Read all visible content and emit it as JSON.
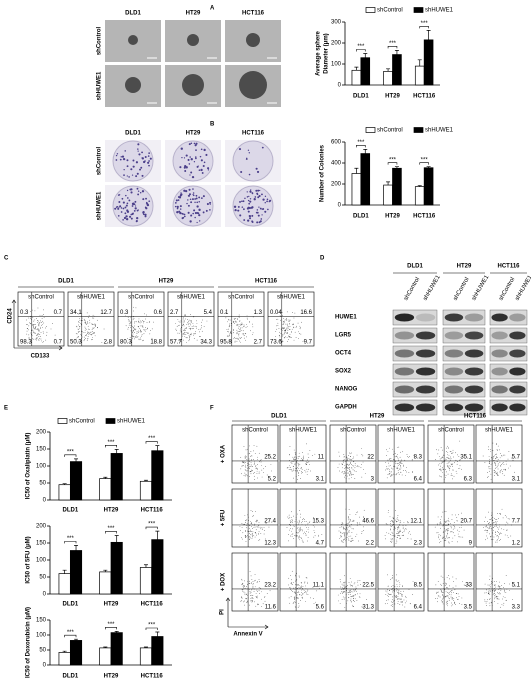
{
  "panel_labels": [
    "A",
    "B",
    "C",
    "D",
    "E",
    "F"
  ],
  "panel_a": {
    "columns": [
      "DLD1",
      "HT29",
      "HCT116"
    ],
    "rows": [
      "shControl",
      "shHUWE1"
    ]
  },
  "panel_b": {
    "columns": [
      "DLD1",
      "HT29",
      "HCT116"
    ],
    "rows": [
      "shControl",
      "shHUWE1"
    ]
  },
  "chart_data": [
    {
      "type": "bar",
      "y_label": [
        "Average sphere",
        "Diameter (μm)"
      ],
      "categories": [
        "DLD1",
        "HT29",
        "HCT116"
      ],
      "series": [
        {
          "name": "shControl",
          "color": "#ffffff",
          "values": [
            70,
            65,
            90
          ],
          "errors": [
            15,
            12,
            30
          ]
        },
        {
          "name": "shHUWE1",
          "color": "#000000",
          "values": [
            130,
            145,
            215
          ],
          "errors": [
            20,
            20,
            45
          ]
        }
      ],
      "significance": [
        "***",
        "***",
        "***"
      ],
      "ylim": [
        0,
        300
      ],
      "yticks": [
        0,
        100,
        200,
        300
      ]
    },
    {
      "type": "bar",
      "y_label": [
        "Number of Colonies"
      ],
      "categories": [
        "DLD1",
        "HT29",
        "HCT116"
      ],
      "series": [
        {
          "name": "shControl",
          "color": "#ffffff",
          "values": [
            300,
            190,
            175
          ],
          "errors": [
            50,
            30,
            10
          ]
        },
        {
          "name": "shHUWE1",
          "color": "#000000",
          "values": [
            490,
            350,
            355
          ],
          "errors": [
            40,
            15,
            10
          ]
        }
      ],
      "significance": [
        "***",
        "***",
        "***"
      ],
      "ylim": [
        0,
        600
      ],
      "yticks": [
        0,
        200,
        400,
        600
      ]
    },
    {
      "type": "bar",
      "y_label": [
        "IC50 of Oxaliplatin (μM)"
      ],
      "categories": [
        "DLD1",
        "HT29",
        "HCT116"
      ],
      "series": [
        {
          "name": "shControl",
          "color": "#ffffff",
          "values": [
            45,
            63,
            55
          ],
          "errors": [
            3,
            4,
            3
          ]
        },
        {
          "name": "shHUWE1",
          "color": "#000000",
          "values": [
            113,
            137,
            145
          ],
          "errors": [
            8,
            12,
            15
          ]
        }
      ],
      "significance": [
        "***",
        "***",
        "***"
      ],
      "ylim": [
        0,
        200
      ],
      "yticks": [
        0,
        50,
        100,
        150,
        200
      ]
    },
    {
      "type": "bar",
      "y_label": [
        "IC50 of 5FU (μM)"
      ],
      "categories": [
        "DLD1",
        "HT29",
        "HCT116"
      ],
      "series": [
        {
          "color": "#ffffff",
          "values": [
            60,
            65,
            78
          ],
          "errors": [
            10,
            5,
            8
          ]
        },
        {
          "color": "#000000",
          "values": [
            128,
            152,
            160
          ],
          "errors": [
            15,
            20,
            25
          ]
        }
      ],
      "significance": [
        "***",
        "***",
        "***"
      ],
      "ylim": [
        0,
        200
      ],
      "yticks": [
        0,
        50,
        100,
        150,
        200
      ]
    },
    {
      "type": "bar",
      "y_label": [
        "IC50 of Doxorubicin (μM)"
      ],
      "categories": [
        "DLD1",
        "HT29",
        "HCT116"
      ],
      "series": [
        {
          "color": "#ffffff",
          "values": [
            42,
            57,
            57
          ],
          "errors": [
            4,
            3,
            3
          ]
        },
        {
          "color": "#000000",
          "values": [
            82,
            108,
            95
          ],
          "errors": [
            4,
            4,
            15
          ]
        }
      ],
      "significance": [
        "***",
        "***",
        "***"
      ],
      "ylim": [
        0,
        150
      ],
      "yticks": [
        0,
        50,
        100,
        150
      ]
    }
  ],
  "panel_c": {
    "columns": [
      "DLD1",
      "HT29",
      "HCT116"
    ],
    "conditions": [
      "shControl",
      "shHUWE1"
    ],
    "y_label": "CD24",
    "x_label": "CD133",
    "plots": [
      [
        0.3,
        0.7,
        98.3,
        0.7
      ],
      [
        34.1,
        12.7,
        50.3,
        2.8
      ],
      [
        0.3,
        0.6,
        80.3,
        18.8
      ],
      [
        2.7,
        5.4,
        57.7,
        34.3
      ],
      [
        0.1,
        1.3,
        95.8,
        2.7
      ],
      [
        0.04,
        16.6,
        73.6,
        9.7
      ]
    ]
  },
  "panel_d": {
    "cell_lines": [
      "DLD1",
      "HT29",
      "HCT116"
    ],
    "lanes": [
      "shControl",
      "shHUWE1"
    ],
    "proteins": [
      "HUWE1",
      "LGR5",
      "OCT4",
      "SOX2",
      "NANOG",
      "GAPDH"
    ]
  },
  "panel_f": {
    "columns": [
      "DLD1",
      "HT29",
      "HCT116"
    ],
    "conditions": [
      "shControl",
      "shHUWE1"
    ],
    "treatments": [
      "+ OXA",
      "+ 5FU",
      "+ DOX"
    ],
    "y_label": "PI",
    "x_label": "Annexin V",
    "plots": [
      [
        [
          25.2,
          5.2
        ],
        [
          11.0,
          3.1
        ],
        [
          22.0,
          3.0
        ],
        [
          8.3,
          6.4
        ],
        [
          35.1,
          6.3
        ],
        [
          5.7,
          3.1
        ]
      ],
      [
        [
          27.4,
          12.3
        ],
        [
          15.3,
          4.7
        ],
        [
          46.6,
          2.2
        ],
        [
          12.1,
          2.3
        ],
        [
          20.7,
          9.0
        ],
        [
          7.7,
          1.2
        ]
      ],
      [
        [
          23.2,
          11.6
        ],
        [
          11.1,
          5.6
        ],
        [
          22.5,
          31.3
        ],
        [
          8.5,
          6.4
        ],
        [
          33.0,
          3.5
        ],
        [
          5.1,
          3.3
        ]
      ]
    ]
  }
}
